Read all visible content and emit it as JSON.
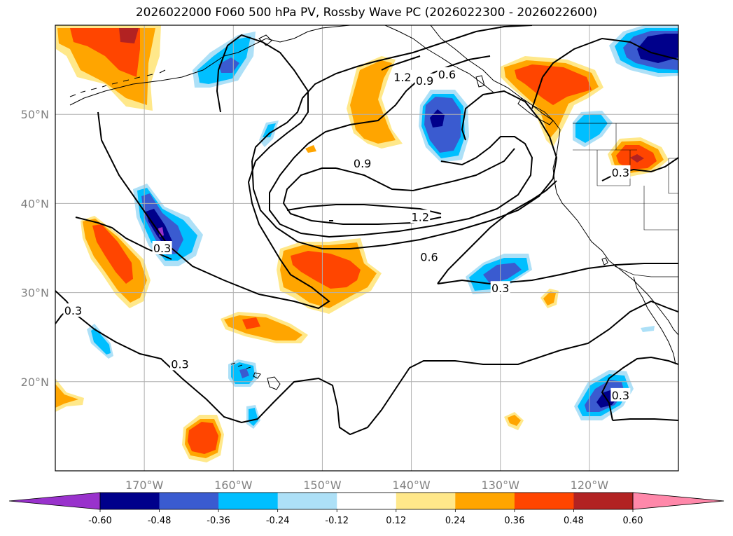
{
  "title": "2026022000 F060 500 hPa PV, Rossby Wave PC (2026022300 - 2026022600)",
  "map": {
    "projection": "PlateCarree",
    "lon_range": [
      -180,
      -110
    ],
    "lat_range": [
      10,
      60
    ],
    "lat_ticks": [
      {
        "value": 50,
        "label": "50°N"
      },
      {
        "value": 40,
        "label": "40°N"
      },
      {
        "value": 30,
        "label": "30°N"
      },
      {
        "value": 20,
        "label": "20°N"
      }
    ],
    "lon_ticks": [
      {
        "value": -170,
        "label": "170°W"
      },
      {
        "value": -160,
        "label": "160°W"
      },
      {
        "value": -150,
        "label": "150°W"
      },
      {
        "value": -140,
        "label": "140°W"
      },
      {
        "value": -130,
        "label": "130°W"
      },
      {
        "value": -120,
        "label": "120°W"
      }
    ],
    "grid": true,
    "contour_labels": [
      {
        "text": "1.2",
        "lon": -141.0,
        "lat": 54.2
      },
      {
        "text": "0.9",
        "lon": -138.5,
        "lat": 53.8
      },
      {
        "text": "0.6",
        "lon": -136.0,
        "lat": 54.5
      },
      {
        "text": "0.9",
        "lon": -145.5,
        "lat": 44.5
      },
      {
        "text": "1.2",
        "lon": -139.0,
        "lat": 38.5
      },
      {
        "text": "0.6",
        "lon": -138.0,
        "lat": 34.0
      },
      {
        "text": "0.3",
        "lon": -130.0,
        "lat": 30.5
      },
      {
        "text": "0.3",
        "lon": -168.0,
        "lat": 35.0
      },
      {
        "text": "0.3",
        "lon": -178.0,
        "lat": 28.0
      },
      {
        "text": "0.3",
        "lon": -166.0,
        "lat": 22.0
      },
      {
        "text": "0.3",
        "lon": -116.5,
        "lat": 18.5
      },
      {
        "text": "0.3",
        "lon": -116.5,
        "lat": 43.5
      }
    ]
  },
  "colorbar": {
    "levels": [
      "-0.60",
      "-0.48",
      "-0.36",
      "-0.24",
      "-0.12",
      "0.12",
      "0.24",
      "0.36",
      "0.48",
      "0.60"
    ],
    "colors": [
      "#9932CC",
      "#00008B",
      "#3A5BD0",
      "#00BFFF",
      "#ADE0F7",
      "#FFFFFF",
      "#FFE88A",
      "#FFA500",
      "#FF4500",
      "#B22222",
      "#FF88AA"
    ]
  },
  "colors": {
    "grid": "#b0b0b0",
    "contour": "#000000",
    "coast": "#000000",
    "tick_text": "#808080"
  }
}
